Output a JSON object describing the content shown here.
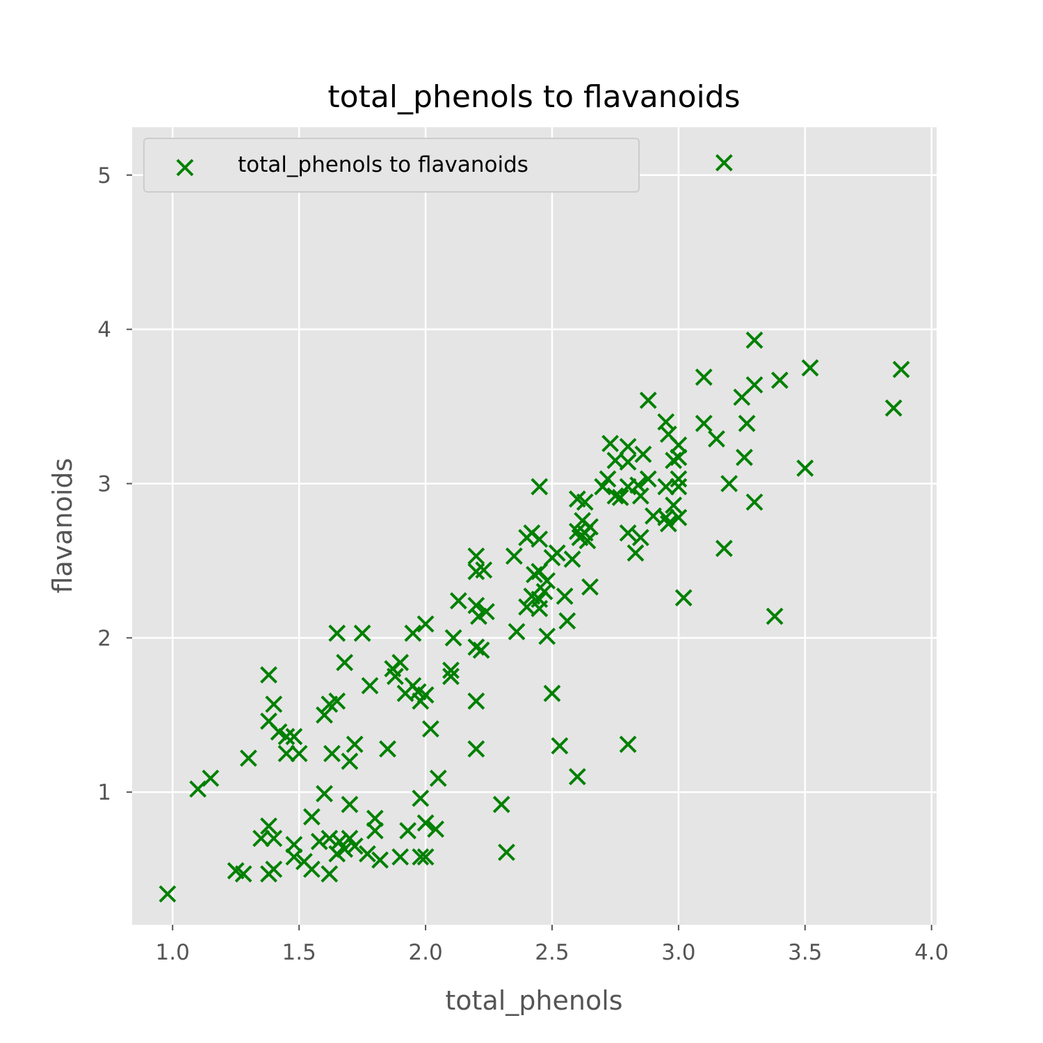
{
  "chart_data": {
    "type": "scatter",
    "title": "total_phenols to flavanoids",
    "xlabel": "total_phenols",
    "ylabel": "flavanoids",
    "xlim": [
      0.84,
      4.02
    ],
    "ylim": [
      0.14,
      5.31
    ],
    "xticks": [
      "1.0",
      "1.5",
      "2.0",
      "2.5",
      "3.0",
      "3.5",
      "4.0"
    ],
    "yticks": [
      "1",
      "2",
      "3",
      "4",
      "5"
    ],
    "grid": true,
    "legend": {
      "position": "upper-left",
      "entries": [
        "total_phenols to flavanoids"
      ]
    },
    "colors": {
      "marker": "#008000",
      "plot_bg": "#e5e5e5",
      "grid": "#ffffff",
      "axis_text": "#555555",
      "title": "#000000"
    },
    "series": [
      {
        "name": "total_phenols to flavanoids",
        "marker": "x",
        "points": [
          [
            0.98,
            0.34
          ],
          [
            1.1,
            1.02
          ],
          [
            1.15,
            1.09
          ],
          [
            1.25,
            0.49
          ],
          [
            1.28,
            0.47
          ],
          [
            1.3,
            1.22
          ],
          [
            1.35,
            0.7
          ],
          [
            1.38,
            0.47
          ],
          [
            1.38,
            0.78
          ],
          [
            1.38,
            1.76
          ],
          [
            1.38,
            1.46
          ],
          [
            1.4,
            0.7
          ],
          [
            1.4,
            0.5
          ],
          [
            1.4,
            1.57
          ],
          [
            1.42,
            1.39
          ],
          [
            1.45,
            1.25
          ],
          [
            1.45,
            1.36
          ],
          [
            1.48,
            1.36
          ],
          [
            1.48,
            0.66
          ],
          [
            1.48,
            0.58
          ],
          [
            1.5,
            1.25
          ],
          [
            1.52,
            0.55
          ],
          [
            1.55,
            0.5
          ],
          [
            1.55,
            0.84
          ],
          [
            1.58,
            0.68
          ],
          [
            1.6,
            0.99
          ],
          [
            1.6,
            1.5
          ],
          [
            1.62,
            1.57
          ],
          [
            1.62,
            0.47
          ],
          [
            1.62,
            0.7
          ],
          [
            1.63,
            1.25
          ],
          [
            1.65,
            1.59
          ],
          [
            1.65,
            2.03
          ],
          [
            1.65,
            0.6
          ],
          [
            1.66,
            0.68
          ],
          [
            1.68,
            1.84
          ],
          [
            1.68,
            0.63
          ],
          [
            1.7,
            0.7
          ],
          [
            1.7,
            1.2
          ],
          [
            1.7,
            0.92
          ],
          [
            1.72,
            0.65
          ],
          [
            1.72,
            1.31
          ],
          [
            1.75,
            2.03
          ],
          [
            1.77,
            0.6
          ],
          [
            1.78,
            1.69
          ],
          [
            1.8,
            0.83
          ],
          [
            1.8,
            0.75
          ],
          [
            1.82,
            0.56
          ],
          [
            1.85,
            1.28
          ],
          [
            1.87,
            1.8
          ],
          [
            1.88,
            1.75
          ],
          [
            1.9,
            1.84
          ],
          [
            1.9,
            0.58
          ],
          [
            1.92,
            1.64
          ],
          [
            1.93,
            0.75
          ],
          [
            1.95,
            2.03
          ],
          [
            1.95,
            1.69
          ],
          [
            1.97,
            1.65
          ],
          [
            1.98,
            0.96
          ],
          [
            1.98,
            0.58
          ],
          [
            1.98,
            1.59
          ],
          [
            2.0,
            2.09
          ],
          [
            2.0,
            0.58
          ],
          [
            2.0,
            1.63
          ],
          [
            2.0,
            0.8
          ],
          [
            2.02,
            1.41
          ],
          [
            2.04,
            0.76
          ],
          [
            2.05,
            1.09
          ],
          [
            2.1,
            1.79
          ],
          [
            2.1,
            1.75
          ],
          [
            2.11,
            2.0
          ],
          [
            2.13,
            2.24
          ],
          [
            2.2,
            2.53
          ],
          [
            2.2,
            2.43
          ],
          [
            2.2,
            1.94
          ],
          [
            2.2,
            2.21
          ],
          [
            2.2,
            1.59
          ],
          [
            2.2,
            1.28
          ],
          [
            2.21,
            2.14
          ],
          [
            2.22,
            1.92
          ],
          [
            2.23,
            2.44
          ],
          [
            2.24,
            2.17
          ],
          [
            2.3,
            0.92
          ],
          [
            2.32,
            0.61
          ],
          [
            2.35,
            2.53
          ],
          [
            2.36,
            2.04
          ],
          [
            2.4,
            2.65
          ],
          [
            2.4,
            2.2
          ],
          [
            2.42,
            2.68
          ],
          [
            2.42,
            2.27
          ],
          [
            2.43,
            2.41
          ],
          [
            2.45,
            2.98
          ],
          [
            2.45,
            2.43
          ],
          [
            2.45,
            2.64
          ],
          [
            2.45,
            2.25
          ],
          [
            2.45,
            2.19
          ],
          [
            2.47,
            2.3
          ],
          [
            2.48,
            2.01
          ],
          [
            2.48,
            2.37
          ],
          [
            2.5,
            1.64
          ],
          [
            2.5,
            2.52
          ],
          [
            2.52,
            2.55
          ],
          [
            2.53,
            1.3
          ],
          [
            2.55,
            2.27
          ],
          [
            2.56,
            2.11
          ],
          [
            2.58,
            2.51
          ],
          [
            2.6,
            1.1
          ],
          [
            2.6,
            2.69
          ],
          [
            2.6,
            2.9
          ],
          [
            2.61,
            2.65
          ],
          [
            2.62,
            2.76
          ],
          [
            2.63,
            2.88
          ],
          [
            2.63,
            2.68
          ],
          [
            2.64,
            2.63
          ],
          [
            2.65,
            2.33
          ],
          [
            2.65,
            2.72
          ],
          [
            2.7,
            2.98
          ],
          [
            2.72,
            3.03
          ],
          [
            2.73,
            3.26
          ],
          [
            2.75,
            2.92
          ],
          [
            2.75,
            3.15
          ],
          [
            2.77,
            2.91
          ],
          [
            2.8,
            3.24
          ],
          [
            2.8,
            3.14
          ],
          [
            2.8,
            2.68
          ],
          [
            2.8,
            1.31
          ],
          [
            2.8,
            2.98
          ],
          [
            2.83,
            2.55
          ],
          [
            2.84,
            2.99
          ],
          [
            2.85,
            2.92
          ],
          [
            2.85,
            2.65
          ],
          [
            2.86,
            3.19
          ],
          [
            2.88,
            3.03
          ],
          [
            2.88,
            3.54
          ],
          [
            2.9,
            2.79
          ],
          [
            2.95,
            3.4
          ],
          [
            2.95,
            2.78
          ],
          [
            2.95,
            2.98
          ],
          [
            2.96,
            3.32
          ],
          [
            2.96,
            2.74
          ],
          [
            2.98,
            2.86
          ],
          [
            2.98,
            3.15
          ],
          [
            3.0,
            3.25
          ],
          [
            3.0,
            3.17
          ],
          [
            3.0,
            3.03
          ],
          [
            3.0,
            2.98
          ],
          [
            3.0,
            2.78
          ],
          [
            3.02,
            2.26
          ],
          [
            3.1,
            3.39
          ],
          [
            3.1,
            3.69
          ],
          [
            3.15,
            3.29
          ],
          [
            3.18,
            5.08
          ],
          [
            3.18,
            2.58
          ],
          [
            3.2,
            3.0
          ],
          [
            3.25,
            3.56
          ],
          [
            3.26,
            3.17
          ],
          [
            3.27,
            3.39
          ],
          [
            3.3,
            3.93
          ],
          [
            3.3,
            3.64
          ],
          [
            3.3,
            2.88
          ],
          [
            3.38,
            2.14
          ],
          [
            3.4,
            3.67
          ],
          [
            3.5,
            3.1
          ],
          [
            3.52,
            3.75
          ],
          [
            3.85,
            3.49
          ],
          [
            3.88,
            3.74
          ]
        ]
      }
    ]
  }
}
